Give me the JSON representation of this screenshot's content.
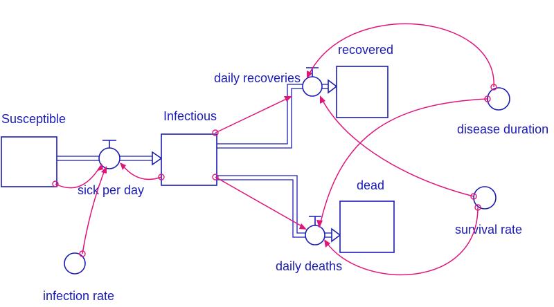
{
  "stocks": {
    "susceptible": "Susceptible",
    "infectious": "Infectious",
    "recovered": "recovered",
    "dead": "dead"
  },
  "flows": {
    "sick_per_day": "sick per day",
    "daily_recoveries": "daily recoveries",
    "daily_deaths": "daily deaths"
  },
  "auxiliaries": {
    "infection_rate": "infection rate",
    "disease_duration": "disease duration",
    "survival_rate": "survival rate"
  },
  "colors": {
    "stock_flow": "#1a1ab5",
    "connector": "#e0157a"
  }
}
